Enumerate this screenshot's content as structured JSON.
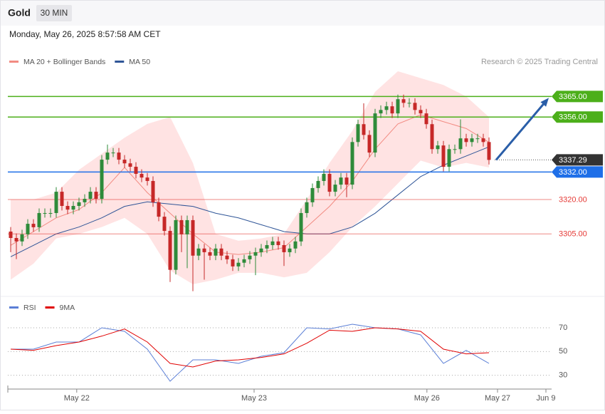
{
  "header": {
    "title": "Gold",
    "interval": "30 MIN",
    "datetime": "Monday, May 26, 2025 8:57:58 AM CET"
  },
  "chart_data": {
    "type": "candlestick",
    "credit": "Research © 2025 Trading Central",
    "up_color": "#2e8b3a",
    "down_color": "#c62828",
    "open": [
      3306.0,
      3303.2,
      3301.7,
      3304.8,
      3309.4,
      3307.9,
      3314.1,
      3314.1,
      3314.1,
      3323.4,
      3317.2,
      3315.6,
      3317.2,
      3318.8,
      3320.3,
      3323.4,
      3320.3,
      3337.4,
      3340.5,
      3340.5,
      3337.4,
      3335.8,
      3334.3,
      3331.2,
      3329.6,
      3328.1,
      3318.8,
      3312.5,
      3306.3,
      3289.3,
      3311.0,
      3304.8,
      3311.0,
      3295.5,
      3298.6,
      3297.0,
      3295.5,
      3298.6,
      3295.5,
      3293.9,
      3290.8,
      3292.4,
      3293.9,
      3295.5,
      3297.0,
      3298.6,
      3300.1,
      3301.7,
      3300.1,
      3297.0,
      3298.6,
      3301.7,
      3314.1,
      3318.8,
      3325.0,
      3328.1,
      3331.2,
      3323.4,
      3326.5,
      3329.6,
      3326.5,
      3345.1,
      3352.9,
      3348.2,
      3340.5,
      3357.6,
      3359.1,
      3360.7,
      3357.6,
      3363.8,
      3362.2,
      3362.2,
      3359.1,
      3357.6,
      3352.9,
      3342.0,
      3343.6,
      3334.3,
      3342.0,
      3342.0,
      3346.7,
      3345.1,
      3346.7,
      3346.7,
      3345.1
    ],
    "high": [
      3308.0,
      3305.2,
      3306.8,
      3311.4,
      3311.4,
      3316.1,
      3316.1,
      3316.1,
      3325.4,
      3325.4,
      3319.2,
      3319.2,
      3320.8,
      3322.3,
      3325.4,
      3325.4,
      3339.4,
      3344.0,
      3342.5,
      3342.5,
      3339.4,
      3337.8,
      3336.3,
      3333.2,
      3331.6,
      3330.1,
      3320.8,
      3314.5,
      3308.3,
      3313.0,
      3313.0,
      3313.0,
      3313.0,
      3300.6,
      3300.6,
      3299.0,
      3300.6,
      3300.6,
      3297.5,
      3295.9,
      3294.4,
      3295.9,
      3297.5,
      3299.0,
      3300.6,
      3302.1,
      3303.7,
      3303.7,
      3302.1,
      3300.6,
      3303.7,
      3316.1,
      3320.8,
      3327.0,
      3330.1,
      3333.2,
      3333.2,
      3328.5,
      3331.6,
      3331.6,
      3347.1,
      3354.9,
      3362.0,
      3350.2,
      3359.6,
      3361.1,
      3362.7,
      3362.7,
      3365.8,
      3365.8,
      3364.2,
      3364.2,
      3361.1,
      3359.6,
      3354.9,
      3345.6,
      3345.6,
      3344.0,
      3344.0,
      3355.0,
      3348.7,
      3348.7,
      3348.7,
      3348.7,
      3347.1
    ],
    "low": [
      3297.0,
      3294.0,
      3299.7,
      3302.8,
      3305.9,
      3305.9,
      3312.1,
      3312.1,
      3312.1,
      3315.2,
      3313.6,
      3313.6,
      3315.2,
      3316.8,
      3318.3,
      3318.3,
      3318.3,
      3335.4,
      3338.5,
      3335.4,
      3333.8,
      3332.3,
      3329.2,
      3327.6,
      3326.1,
      3316.8,
      3310.5,
      3304.3,
      3284.0,
      3287.3,
      3297.0,
      3290.0,
      3280.0,
      3293.5,
      3285.0,
      3293.5,
      3293.5,
      3293.5,
      3291.9,
      3288.8,
      3288.8,
      3290.4,
      3291.9,
      3287.0,
      3295.0,
      3296.6,
      3298.1,
      3298.1,
      3291.0,
      3295.0,
      3296.6,
      3299.7,
      3312.1,
      3316.8,
      3323.0,
      3326.1,
      3321.4,
      3321.4,
      3324.5,
      3321.0,
      3324.5,
      3343.1,
      3346.2,
      3338.5,
      3338.5,
      3355.6,
      3357.1,
      3355.6,
      3355.6,
      3360.2,
      3360.2,
      3357.1,
      3355.6,
      3350.9,
      3340.0,
      3340.0,
      3332.3,
      3332.3,
      3340.0,
      3340.0,
      3343.1,
      3343.1,
      3344.7,
      3343.1,
      3335.3
    ],
    "close": [
      3303.2,
      3301.7,
      3304.8,
      3309.4,
      3307.9,
      3314.1,
      3314.1,
      3314.1,
      3323.4,
      3317.2,
      3315.6,
      3317.2,
      3318.8,
      3320.3,
      3323.4,
      3320.3,
      3337.4,
      3340.5,
      3340.5,
      3337.4,
      3335.8,
      3334.3,
      3331.2,
      3329.6,
      3328.1,
      3318.8,
      3312.5,
      3306.3,
      3289.3,
      3311.0,
      3304.8,
      3311.0,
      3295.5,
      3298.6,
      3297.0,
      3295.5,
      3298.6,
      3295.5,
      3293.9,
      3290.8,
      3292.4,
      3293.9,
      3295.5,
      3297.0,
      3298.6,
      3300.1,
      3301.7,
      3300.1,
      3297.0,
      3298.6,
      3301.7,
      3314.1,
      3318.8,
      3325.0,
      3328.1,
      3331.2,
      3323.4,
      3326.5,
      3329.6,
      3326.5,
      3345.1,
      3352.9,
      3348.2,
      3340.5,
      3357.6,
      3359.1,
      3360.7,
      3357.6,
      3363.8,
      3362.2,
      3362.2,
      3359.1,
      3357.6,
      3352.9,
      3342.0,
      3343.6,
      3334.3,
      3342.0,
      3342.0,
      3346.7,
      3345.1,
      3346.7,
      3346.7,
      3345.1,
      3337.29
    ],
    "lines": [
      {
        "name": "MA 20 + Bollinger Bands",
        "color": "#f28b82",
        "band_color": "#ffcccc",
        "values": [
          3300,
          3306,
          3312,
          3315.6,
          3323,
          3334,
          3323,
          3314,
          3305,
          3297,
          3296,
          3297,
          3299,
          3308,
          3317,
          3328,
          3342,
          3353,
          3357,
          3354,
          3351,
          3345
        ],
        "upper": [
          3320,
          3320,
          3323,
          3333,
          3340,
          3347,
          3353,
          3356,
          3336,
          3305,
          3302,
          3303,
          3305,
          3320,
          3336,
          3350,
          3367,
          3376,
          3373,
          3370,
          3365,
          3356
        ],
        "lower": [
          3285,
          3292,
          3303,
          3305,
          3308,
          3312,
          3305,
          3289,
          3283,
          3285,
          3288,
          3288,
          3286,
          3288,
          3297,
          3308,
          3317,
          3327,
          3337,
          3334,
          3336,
          3334
        ]
      },
      {
        "name": "MA 50",
        "color": "#2f5597",
        "values": [
          3295,
          3300,
          3305,
          3308,
          3312,
          3317,
          3319,
          3318,
          3317,
          3314,
          3312,
          3309,
          3306,
          3305,
          3305,
          3308,
          3314,
          3322,
          3330,
          3335,
          3339,
          3343
        ]
      }
    ],
    "ylim": [
      3278,
      3376
    ],
    "levels": [
      {
        "price": 3365,
        "label": "3365.00",
        "color": "#4caf1a",
        "style": "box"
      },
      {
        "price": 3356,
        "label": "3356.00",
        "color": "#4caf1a",
        "style": "box"
      },
      {
        "price": 3337.29,
        "label": "3337.29",
        "color": "#333333",
        "style": "dotted-box"
      },
      {
        "price": 3332,
        "label": "3332.00",
        "color": "#1e6fe8",
        "style": "box"
      },
      {
        "price": 3320,
        "label": "3320.00",
        "color": "#e53935",
        "style": "text"
      },
      {
        "price": 3305,
        "label": "3305.00",
        "color": "#e53935",
        "style": "text"
      }
    ],
    "xlim": [
      -0.5,
      95
    ],
    "xticks": [
      {
        "value": 11.6,
        "label": "May 22"
      },
      {
        "value": 42.75,
        "label": "May 23"
      },
      {
        "value": 73.1,
        "label": "May 26"
      },
      {
        "value": 85.5,
        "label": "May 27"
      },
      {
        "value": 94,
        "label": "Jun 9"
      }
    ],
    "rsi": {
      "ylim": [
        19,
        82
      ],
      "yticks": [
        30,
        50,
        70
      ],
      "grid": true,
      "series": [
        {
          "name": "RSI",
          "color": "#5b7fd6",
          "values": [
            52,
            52,
            58,
            58,
            70,
            67,
            52,
            25,
            43,
            43,
            40,
            46,
            49,
            70,
            69,
            73,
            70,
            69,
            64,
            40,
            51,
            40
          ]
        },
        {
          "name": "9MA",
          "color": "#e00000",
          "values": [
            52,
            51,
            55,
            58,
            63,
            69,
            58,
            40,
            37,
            42,
            43,
            45,
            48,
            57,
            68,
            67,
            70,
            69,
            67,
            52,
            48,
            49
          ]
        }
      ]
    }
  }
}
